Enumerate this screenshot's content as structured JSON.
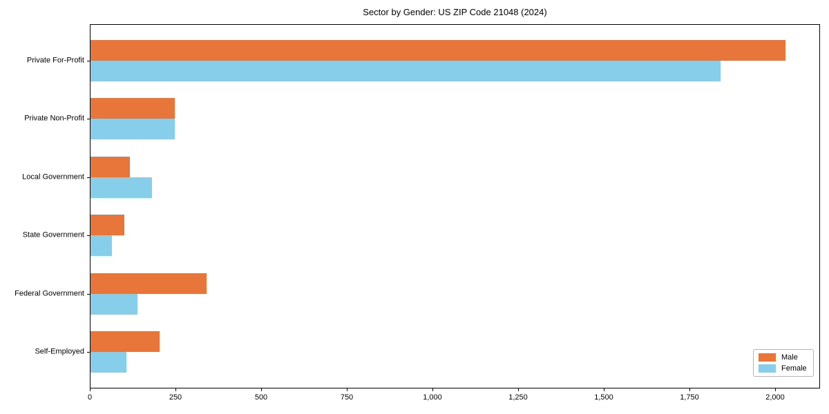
{
  "chart_data": {
    "type": "bar",
    "orientation": "horizontal",
    "title": "Sector by Gender: US ZIP Code 21048 (2024)",
    "categories": [
      "Private For-Profit",
      "Private Non-Profit",
      "Local Government",
      "State Government",
      "Federal Government",
      "Self-Employed"
    ],
    "series": [
      {
        "name": "Male",
        "color": "#E8763B",
        "values": [
          2030,
          248,
          116,
          100,
          341,
          204
        ]
      },
      {
        "name": "Female",
        "color": "#87CEEB",
        "values": [
          1840,
          248,
          182,
          65,
          139,
          106
        ]
      }
    ],
    "xlabel": "",
    "ylabel": "",
    "xlim": [
      0,
      2131
    ],
    "xticks": {
      "values": [
        0,
        250,
        500,
        750,
        1000,
        1250,
        1500,
        1750,
        2000
      ],
      "labels": [
        "0",
        "250",
        "500",
        "750",
        "1,000",
        "1,250",
        "1,500",
        "1,750",
        "2,000"
      ]
    },
    "legend": {
      "position": "lower right",
      "entries": [
        "Male",
        "Female"
      ]
    },
    "grid": false,
    "bar_width": 0.35
  }
}
